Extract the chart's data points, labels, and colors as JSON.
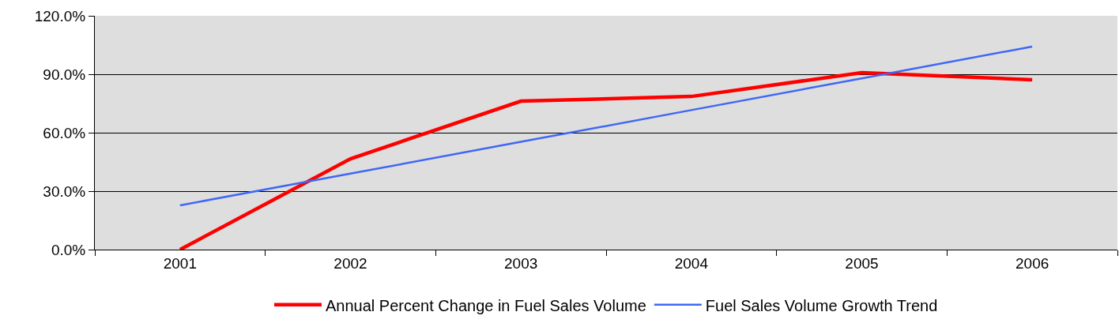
{
  "chart_data": {
    "type": "line",
    "categories": [
      "2001",
      "2002",
      "2003",
      "2004",
      "2005",
      "2006"
    ],
    "series": [
      {
        "name": "Annual Percent Change in Fuel Sales Volume",
        "color": "#ff0000",
        "values": [
          0,
          46.6,
          76.2,
          78.6,
          90.8,
          87.2
        ]
      },
      {
        "name": "Fuel Sales Volume Growth Trend",
        "color": "#3f67f5",
        "type": "line",
        "values": [
          22.7,
          39.0,
          55.3,
          71.6,
          87.9,
          104.2
        ]
      }
    ],
    "ylim": [
      0,
      120
    ],
    "yticks": [
      {
        "value": 0,
        "label": "0.0%"
      },
      {
        "value": 30,
        "label": "30.0%"
      },
      {
        "value": 60,
        "label": "60.0%"
      },
      {
        "value": 90,
        "label": "90.0%"
      },
      {
        "value": 120,
        "label": "120.0%"
      }
    ],
    "grid": "y",
    "legend": "bottom",
    "marker": "none",
    "line_style": "solid"
  }
}
